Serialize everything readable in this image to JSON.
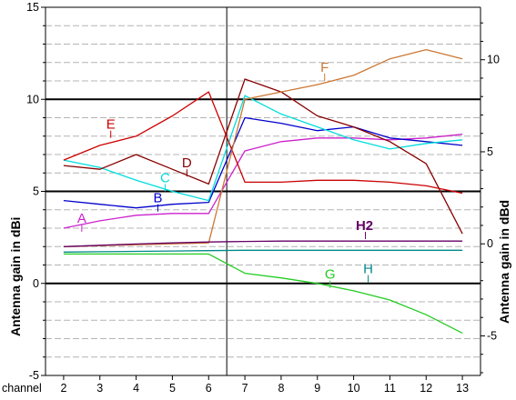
{
  "chart_data": {
    "type": "line",
    "ylabel_left": "Antenna gain   in dBi",
    "ylabel_right": "Antenna gain   in dBd",
    "xlabel": "channel",
    "x": [
      2,
      3,
      4,
      5,
      6,
      7,
      8,
      9,
      10,
      11,
      12,
      13
    ],
    "x_ticks": [
      "2",
      "3",
      "4",
      "5",
      "6",
      "7",
      "8",
      "9",
      "10",
      "11",
      "12",
      "13"
    ],
    "ylim_left": [
      -5,
      15
    ],
    "y_ticks_left": [
      "15",
      "10",
      "5",
      "0",
      "-5"
    ],
    "ylim_right": [
      -7.15,
      12.85
    ],
    "y_ticks_right": [
      "10",
      "5",
      "0",
      "-5"
    ],
    "grid": true,
    "marker_line_x": 6.5,
    "series": [
      {
        "name": "A",
        "color": "#cc22cc",
        "label_at": [
          2.5,
          3.3
        ],
        "points": [
          [
            2,
            3.0
          ],
          [
            3,
            3.4
          ],
          [
            4,
            3.7
          ],
          [
            5,
            3.8
          ],
          [
            6,
            3.8
          ],
          [
            7,
            7.2
          ],
          [
            8,
            7.7
          ],
          [
            9,
            7.9
          ],
          [
            10,
            7.9
          ],
          [
            11,
            7.8
          ],
          [
            12,
            7.9
          ],
          [
            13,
            8.1
          ]
        ]
      },
      {
        "name": "B",
        "color": "#0000cc",
        "label_at": [
          4.6,
          4.4
        ],
        "points": [
          [
            2,
            4.5
          ],
          [
            3,
            4.3
          ],
          [
            4,
            4.1
          ],
          [
            5,
            4.3
          ],
          [
            6,
            4.4
          ],
          [
            7,
            9.0
          ],
          [
            8,
            8.7
          ],
          [
            9,
            8.3
          ],
          [
            10,
            8.5
          ],
          [
            11,
            7.9
          ],
          [
            12,
            7.7
          ],
          [
            13,
            7.5
          ]
        ]
      },
      {
        "name": "C",
        "color": "#00dddd",
        "label_at": [
          4.8,
          5.5
        ],
        "points": [
          [
            2,
            6.7
          ],
          [
            3,
            6.3
          ],
          [
            4,
            5.6
          ],
          [
            5,
            5.0
          ],
          [
            6,
            4.5
          ],
          [
            7,
            10.2
          ],
          [
            8,
            9.2
          ],
          [
            9,
            8.5
          ],
          [
            10,
            7.8
          ],
          [
            11,
            7.3
          ],
          [
            12,
            7.6
          ],
          [
            13,
            7.8
          ]
        ]
      },
      {
        "name": "D",
        "color": "#880000",
        "label_at": [
          5.4,
          6.3
        ],
        "points": [
          [
            2,
            6.4
          ],
          [
            3,
            6.2
          ],
          [
            4,
            7.0
          ],
          [
            5,
            6.2
          ],
          [
            6,
            5.4
          ],
          [
            7,
            11.1
          ],
          [
            8,
            10.4
          ],
          [
            9,
            9.1
          ],
          [
            10,
            8.5
          ],
          [
            11,
            7.7
          ],
          [
            12,
            6.5
          ],
          [
            13,
            2.7
          ]
        ]
      },
      {
        "name": "E",
        "color": "#cc0000",
        "label_at": [
          3.3,
          8.4
        ],
        "points": [
          [
            2,
            6.7
          ],
          [
            3,
            7.5
          ],
          [
            4,
            8.0
          ],
          [
            5,
            9.1
          ],
          [
            6,
            10.4
          ],
          [
            7,
            5.5
          ],
          [
            8,
            5.5
          ],
          [
            9,
            5.6
          ],
          [
            10,
            5.6
          ],
          [
            11,
            5.5
          ],
          [
            12,
            5.3
          ],
          [
            13,
            4.9
          ]
        ]
      },
      {
        "name": "F",
        "color": "#cc7733",
        "label_at": [
          9.2,
          11.5
        ],
        "points": [
          [
            2,
            2.0
          ],
          [
            3,
            2.05
          ],
          [
            4,
            2.1
          ],
          [
            5,
            2.15
          ],
          [
            6,
            2.2
          ],
          [
            7,
            10.0
          ],
          [
            8,
            10.4
          ],
          [
            9,
            10.8
          ],
          [
            10,
            11.3
          ],
          [
            11,
            12.2
          ],
          [
            12,
            12.7
          ],
          [
            13,
            12.2
          ]
        ]
      },
      {
        "name": "G",
        "color": "#22cc22",
        "label_at": [
          9.35,
          0.25
        ],
        "points": [
          [
            2,
            1.6
          ],
          [
            3,
            1.6
          ],
          [
            4,
            1.6
          ],
          [
            5,
            1.6
          ],
          [
            6,
            1.6
          ],
          [
            7,
            0.55
          ],
          [
            8,
            0.3
          ],
          [
            9,
            0.0
          ],
          [
            10,
            -0.4
          ],
          [
            11,
            -0.9
          ],
          [
            12,
            -1.7
          ],
          [
            13,
            -2.7
          ]
        ]
      },
      {
        "name": "H",
        "color": "#008888",
        "label_at": [
          10.4,
          0.55
        ],
        "points": [
          [
            2,
            1.7
          ],
          [
            3,
            1.72
          ],
          [
            4,
            1.74
          ],
          [
            5,
            1.76
          ],
          [
            6,
            1.78
          ],
          [
            7,
            1.8
          ],
          [
            8,
            1.8
          ],
          [
            9,
            1.8
          ],
          [
            10,
            1.8
          ],
          [
            11,
            1.8
          ],
          [
            12,
            1.8
          ],
          [
            13,
            1.8
          ]
        ]
      },
      {
        "name": "H2",
        "color": "#660066",
        "label_at": [
          10.3,
          2.9
        ],
        "points": [
          [
            2,
            2.0
          ],
          [
            3,
            2.07
          ],
          [
            4,
            2.14
          ],
          [
            5,
            2.2
          ],
          [
            6,
            2.25
          ],
          [
            7,
            2.28
          ],
          [
            8,
            2.3
          ],
          [
            9,
            2.3
          ],
          [
            10,
            2.3
          ],
          [
            11,
            2.3
          ],
          [
            12,
            2.3
          ],
          [
            13,
            2.3
          ]
        ]
      }
    ]
  }
}
